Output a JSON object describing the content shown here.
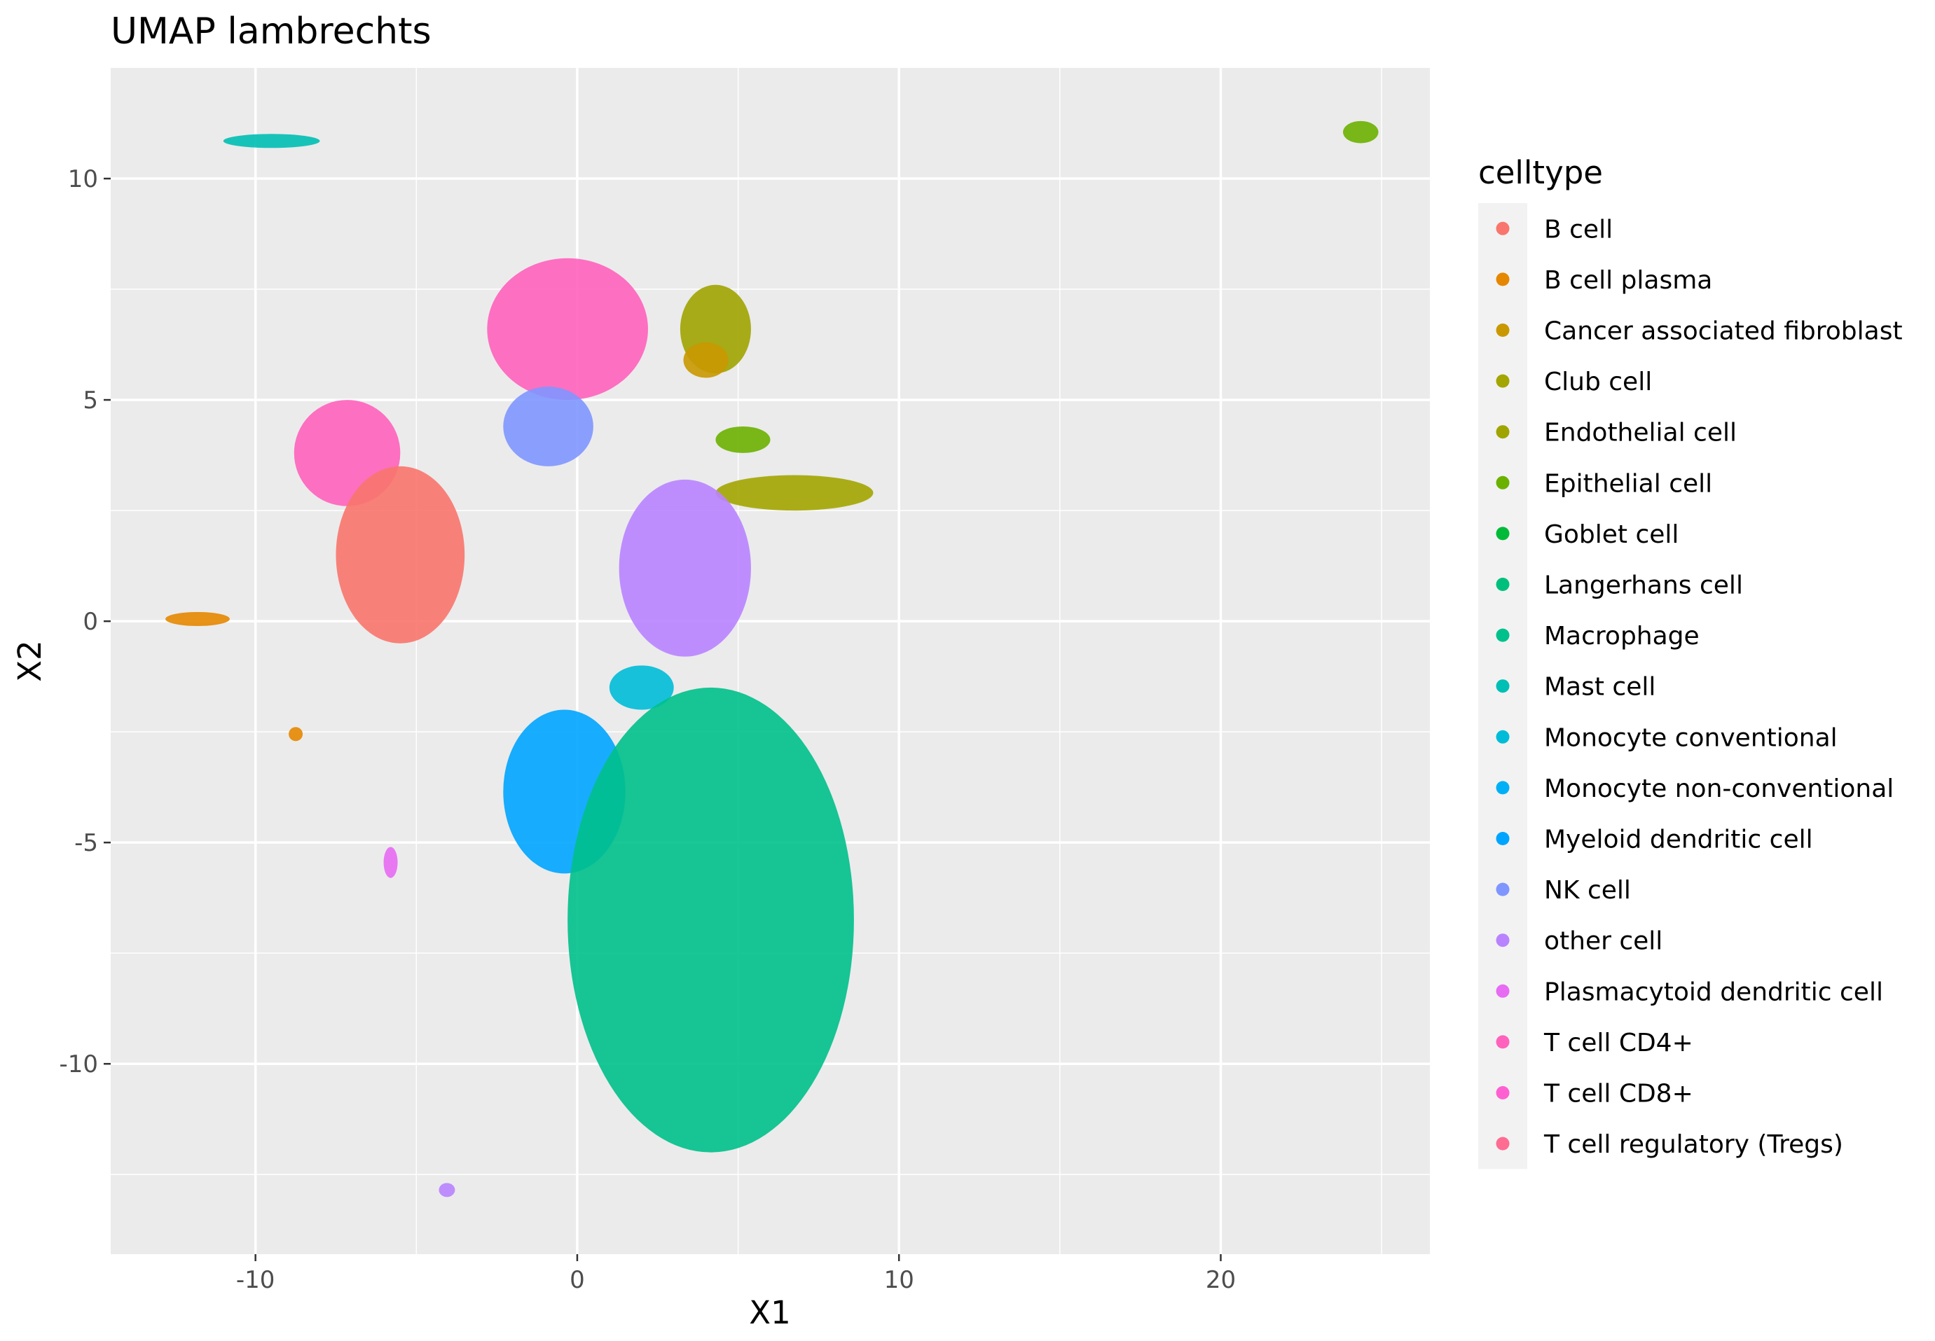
{
  "chart_data": {
    "type": "scatter",
    "title": "UMAP lambrechts",
    "xlabel": "X1",
    "ylabel": "X2",
    "xlim": [
      -14.5,
      26.5
    ],
    "ylim": [
      -14.3,
      12.5
    ],
    "x_ticks": [
      -10,
      0,
      10,
      20
    ],
    "x_tick_labels": [
      "-10",
      "0",
      "10",
      "20"
    ],
    "y_ticks": [
      10,
      5,
      0,
      -5,
      -10
    ],
    "y_tick_labels": [
      "10",
      "5",
      "0",
      "-5",
      "-10"
    ],
    "grid": true,
    "legend": {
      "title": "celltype",
      "placement": "right",
      "entries": [
        {
          "name": "B cell",
          "color": "#F8766D"
        },
        {
          "name": "B cell plasma",
          "color": "#E58700"
        },
        {
          "name": "Cancer associated fibroblast",
          "color": "#C99800"
        },
        {
          "name": "Club cell",
          "color": "#A3A500"
        },
        {
          "name": "Endothelial cell",
          "color": "#A0A400"
        },
        {
          "name": "Epithelial cell",
          "color": "#6BB100"
        },
        {
          "name": "Goblet cell",
          "color": "#00BA38"
        },
        {
          "name": "Langerhans cell",
          "color": "#00BF7D"
        },
        {
          "name": "Macrophage",
          "color": "#00C08B"
        },
        {
          "name": "Mast cell",
          "color": "#00BFB4"
        },
        {
          "name": "Monocyte conventional",
          "color": "#00BCD8"
        },
        {
          "name": "Monocyte non-conventional",
          "color": "#00B0F6"
        },
        {
          "name": "Myeloid dendritic cell",
          "color": "#00A5FF"
        },
        {
          "name": "NK cell",
          "color": "#7F96FF"
        },
        {
          "name": "other cell",
          "color": "#B983FF"
        },
        {
          "name": "Plasmacytoid dendritic cell",
          "color": "#E76BF3"
        },
        {
          "name": "T cell CD4+",
          "color": "#FF62BC"
        },
        {
          "name": "T cell CD8+",
          "color": "#FD61D1"
        },
        {
          "name": "T cell regulatory (Tregs)",
          "color": "#FF6C91"
        }
      ]
    },
    "clusters": [
      {
        "celltype": "Mast cell",
        "x": [
          -11.0,
          -8.0
        ],
        "y": [
          10.7,
          11.0
        ]
      },
      {
        "celltype": "Epithelial cell",
        "x": [
          23.8,
          24.9
        ],
        "y": [
          10.8,
          11.3
        ]
      },
      {
        "celltype": "T cell CD4+",
        "x": [
          -2.8,
          2.2
        ],
        "y": [
          5.0,
          8.2
        ]
      },
      {
        "celltype": "NK cell",
        "x": [
          -2.3,
          0.5
        ],
        "y": [
          3.5,
          5.3
        ]
      },
      {
        "celltype": "T cell CD4+",
        "x": [
          -8.8,
          -5.5
        ],
        "y": [
          2.6,
          5.0
        ]
      },
      {
        "celltype": "B cell",
        "x": [
          -7.5,
          -3.5
        ],
        "y": [
          -0.5,
          3.5
        ]
      },
      {
        "celltype": "B cell plasma",
        "x": [
          -12.8,
          -10.8
        ],
        "y": [
          -0.1,
          0.2
        ]
      },
      {
        "celltype": "B cell plasma",
        "x": [
          -8.9,
          -8.6
        ],
        "y": [
          -2.7,
          -2.4
        ]
      },
      {
        "celltype": "Plasmacytoid dendritic cell",
        "x": [
          -5.9,
          -5.7
        ],
        "y": [
          -5.8,
          -5.1
        ]
      },
      {
        "celltype": "other cell",
        "x": [
          -4.3,
          -3.8
        ],
        "y": [
          -13.0,
          -12.7
        ]
      },
      {
        "celltype": "Endothelial cell",
        "x": [
          3.2,
          5.4
        ],
        "y": [
          5.6,
          7.6
        ]
      },
      {
        "celltype": "Cancer associated fibroblast",
        "x": [
          3.3,
          4.7
        ],
        "y": [
          5.5,
          6.3
        ]
      },
      {
        "celltype": "Epithelial cell",
        "x": [
          4.3,
          6.0
        ],
        "y": [
          3.8,
          4.4
        ]
      },
      {
        "celltype": "Club cell",
        "x": [
          4.3,
          9.2
        ],
        "y": [
          2.5,
          3.3
        ]
      },
      {
        "celltype": "other cell",
        "x": [
          1.3,
          5.4
        ],
        "y": [
          -0.8,
          3.2
        ]
      },
      {
        "celltype": "Monocyte conventional",
        "x": [
          1.0,
          3.0
        ],
        "y": [
          -2.0,
          -1.0
        ]
      },
      {
        "celltype": "Myeloid dendritic cell",
        "x": [
          -2.3,
          1.5
        ],
        "y": [
          -5.7,
          -2.0
        ]
      },
      {
        "celltype": "Macrophage",
        "x": [
          -0.3,
          8.6
        ],
        "y": [
          -12.0,
          -1.5
        ]
      }
    ]
  }
}
